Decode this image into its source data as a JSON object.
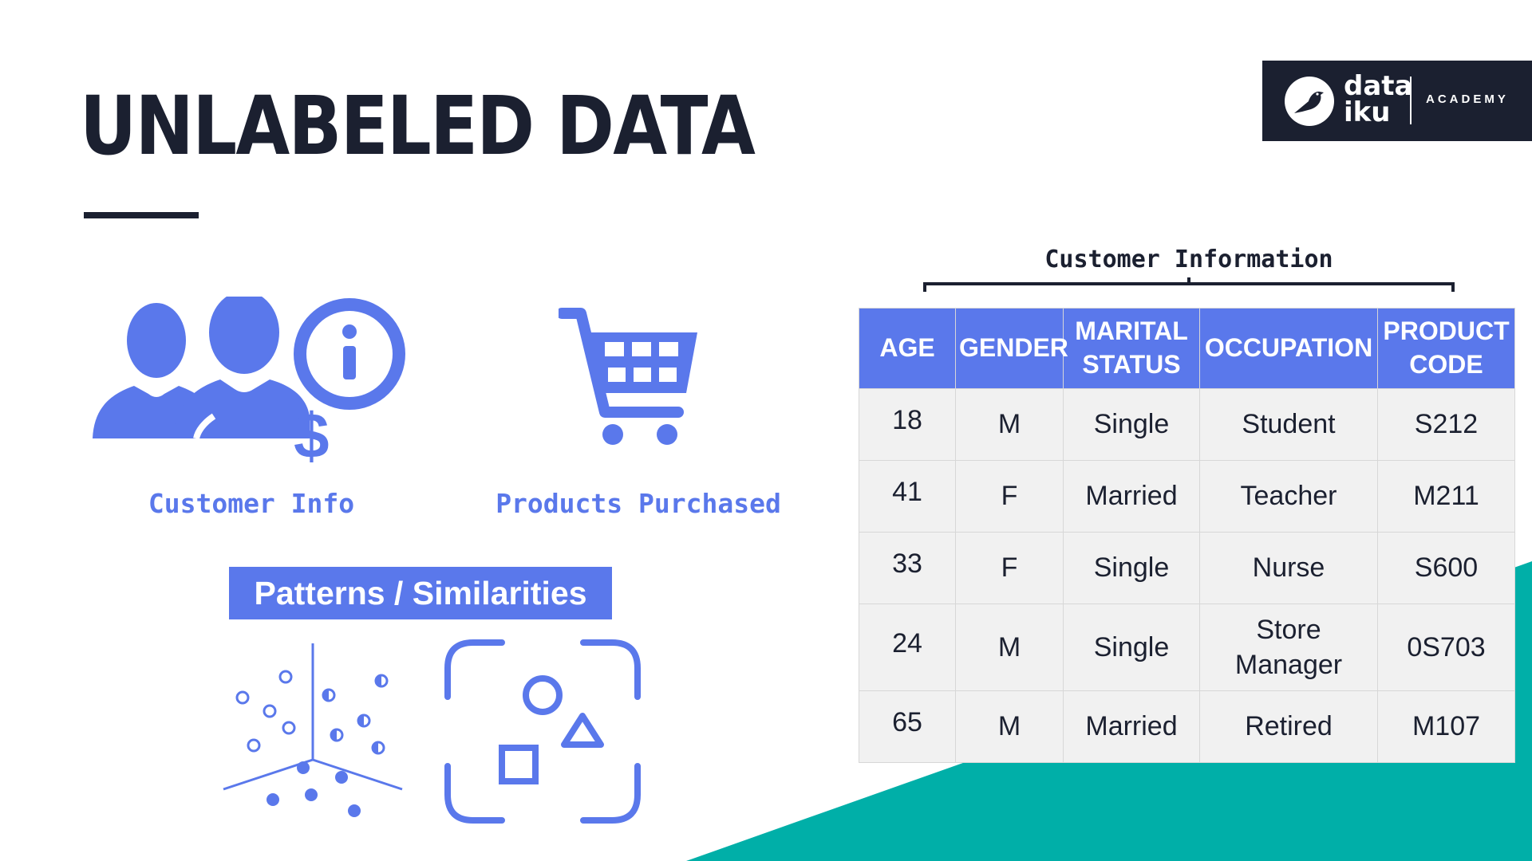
{
  "slide": {
    "title": "UNLABELED DATA",
    "colors": {
      "accent": "#5a78eb",
      "dark": "#1b2030",
      "teal": "#00afa8"
    }
  },
  "logo": {
    "line1": "data",
    "line2": "iku",
    "academy": "ACADEMY"
  },
  "icons": {
    "customer_info": {
      "icon": "customers-info-dollar-icon",
      "caption": "Customer Info"
    },
    "products": {
      "icon": "shopping-cart-icon",
      "caption": "Products Purchased"
    }
  },
  "patterns": {
    "label": "Patterns / Similarities",
    "icons": [
      "scatter-clusters-icon",
      "shape-recognition-icon"
    ]
  },
  "table": {
    "heading": "Customer Information",
    "headers": [
      [
        "AGE"
      ],
      [
        "GENDER"
      ],
      [
        "MARITAL",
        "STATUS"
      ],
      [
        "OCCUPATION"
      ],
      [
        "PRODUCT",
        "CODE"
      ]
    ],
    "rows": [
      [
        [
          "18"
        ],
        [
          "M"
        ],
        [
          "Single"
        ],
        [
          "Student"
        ],
        [
          "S212"
        ]
      ],
      [
        [
          "41"
        ],
        [
          "F"
        ],
        [
          "Married"
        ],
        [
          "Teacher"
        ],
        [
          "M211"
        ]
      ],
      [
        [
          "33"
        ],
        [
          "F"
        ],
        [
          "Single"
        ],
        [
          "Nurse"
        ],
        [
          "S600"
        ]
      ],
      [
        [
          "24"
        ],
        [
          "M"
        ],
        [
          "Single"
        ],
        [
          "Store",
          "Manager"
        ],
        [
          "0S703"
        ]
      ],
      [
        [
          "65"
        ],
        [
          "M"
        ],
        [
          "Married"
        ],
        [
          "Retired"
        ],
        [
          "M107"
        ]
      ]
    ]
  }
}
